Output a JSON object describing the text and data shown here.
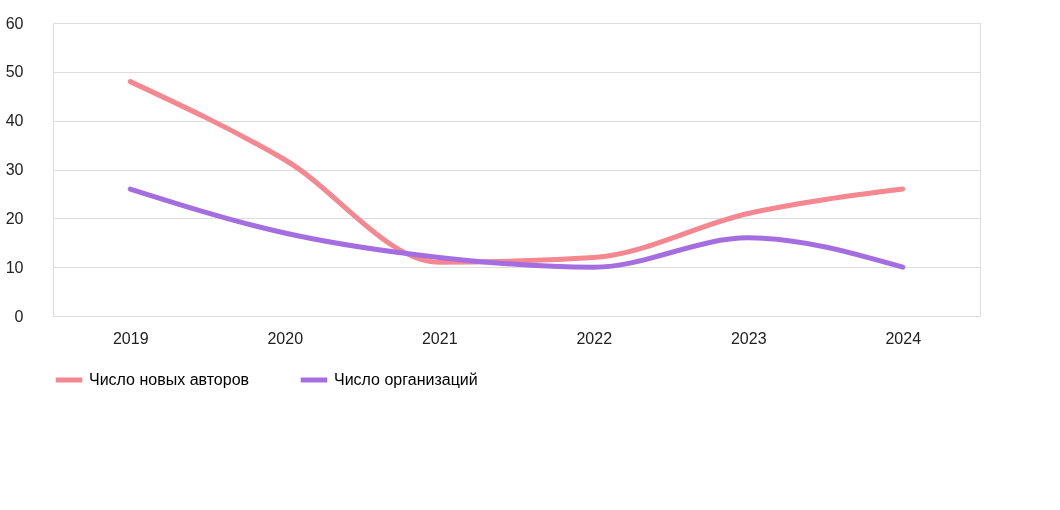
{
  "chart_data": {
    "type": "line",
    "categories": [
      "2019",
      "2020",
      "2021",
      "2022",
      "2023",
      "2024"
    ],
    "series": [
      {
        "name": "Число новых авторов",
        "color": "#f4878f",
        "values": [
          48,
          32,
          11,
          12,
          21,
          26
        ]
      },
      {
        "name": "Число организаций",
        "color": "#a56ee0",
        "values": [
          26,
          17,
          12,
          10,
          16,
          10
        ]
      }
    ],
    "ylim": [
      0,
      60
    ],
    "yticks": [
      0,
      10,
      20,
      30,
      40,
      50,
      60
    ],
    "grid": "y",
    "legend": "bottom",
    "marker": "none",
    "line_style": "solid"
  }
}
